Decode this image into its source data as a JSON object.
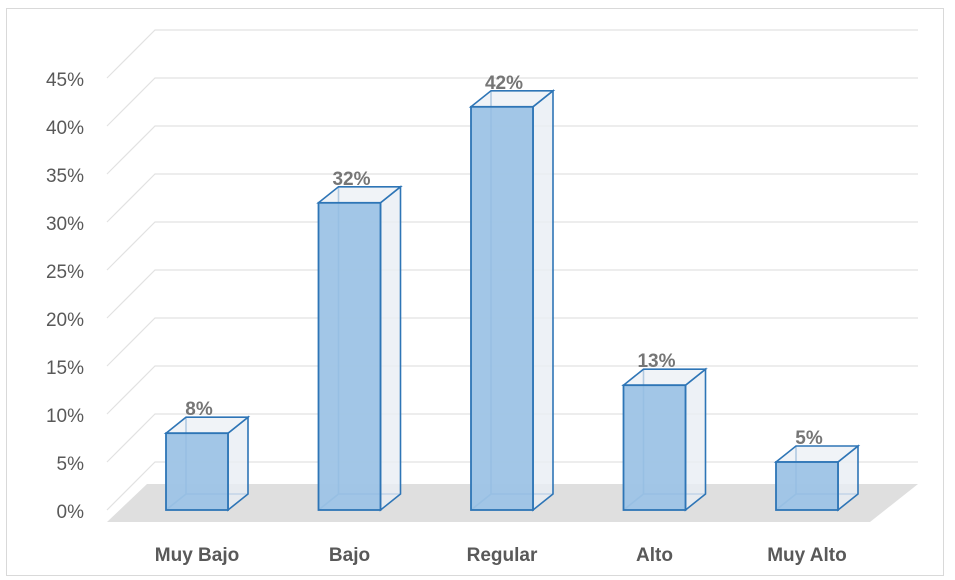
{
  "chart_data": {
    "type": "bar",
    "style": "3d-column",
    "categories": [
      "Muy Bajo",
      "Bajo",
      "Regular",
      "Alto",
      "Muy Alto"
    ],
    "values": [
      8,
      32,
      42,
      13,
      5
    ],
    "data_labels": [
      "8%",
      "32%",
      "42%",
      "13%",
      "5%"
    ],
    "yticks": [
      "0%",
      "5%",
      "10%",
      "15%",
      "20%",
      "25%",
      "30%",
      "35%",
      "40%",
      "45%"
    ],
    "ylim": [
      0,
      45
    ],
    "title": "",
    "xlabel": "",
    "ylabel": "",
    "grid": true,
    "legend": "none",
    "colors": {
      "bar_front": "#9dc3e6",
      "bar_side": "#e9eef4",
      "bar_edge": "#2e75b6",
      "grid": "#e2e2e2",
      "floor": "#d9d9d9",
      "text": "#595959",
      "data_label": "#767676"
    }
  }
}
